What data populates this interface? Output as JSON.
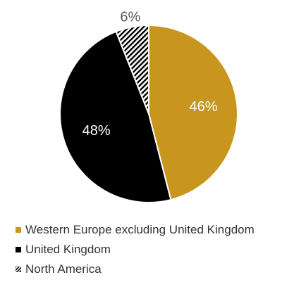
{
  "chart_data": {
    "type": "pie",
    "slices": [
      {
        "label": "Western Europe excluding United Kingdom",
        "value": 46,
        "display": "46%",
        "color": "#C8961E",
        "fill": "solid"
      },
      {
        "label": "United Kingdom",
        "value": 48,
        "display": "48%",
        "color": "#000000",
        "fill": "solid"
      },
      {
        "label": "North America",
        "value": 6,
        "display": "6%",
        "color": "#000000",
        "fill": "diagonal-hatch"
      }
    ],
    "start": "12 o'clock",
    "direction": "clockwise",
    "legend_position": "bottom-left",
    "data_label_color_inside": "#ffffff",
    "data_label_color_outside": "#595959"
  }
}
